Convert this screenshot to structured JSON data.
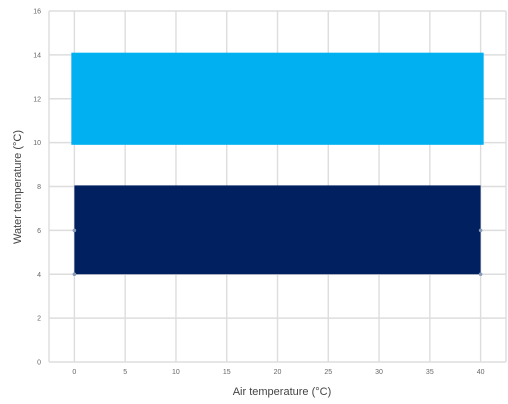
{
  "chart_data": {
    "type": "area",
    "title": "",
    "xlabel": "Air temperature (°C)",
    "ylabel": "Water temperature (°C)",
    "xlim": [
      -2.5,
      42.5
    ],
    "ylim": [
      0,
      16
    ],
    "x_ticks": [
      0,
      5,
      10,
      15,
      20,
      25,
      30,
      35,
      40
    ],
    "y_ticks": [
      0,
      2,
      4,
      6,
      8,
      10,
      12,
      14,
      16
    ],
    "grid": true,
    "legend": "none",
    "series": [
      {
        "color": "#00b0f0",
        "x_range": [
          -0.3,
          40.3
        ],
        "y_lower": 9.9,
        "y_upper": 14.1,
        "points": []
      },
      {
        "color": "#002060",
        "x_range": [
          0,
          40
        ],
        "y_lower": 4,
        "y_upper": 8.05,
        "points": [
          {
            "x": 0,
            "y": 6
          },
          {
            "x": 0,
            "y": 4
          },
          {
            "x": 40,
            "y": 6
          },
          {
            "x": 40,
            "y": 4
          }
        ]
      }
    ]
  }
}
